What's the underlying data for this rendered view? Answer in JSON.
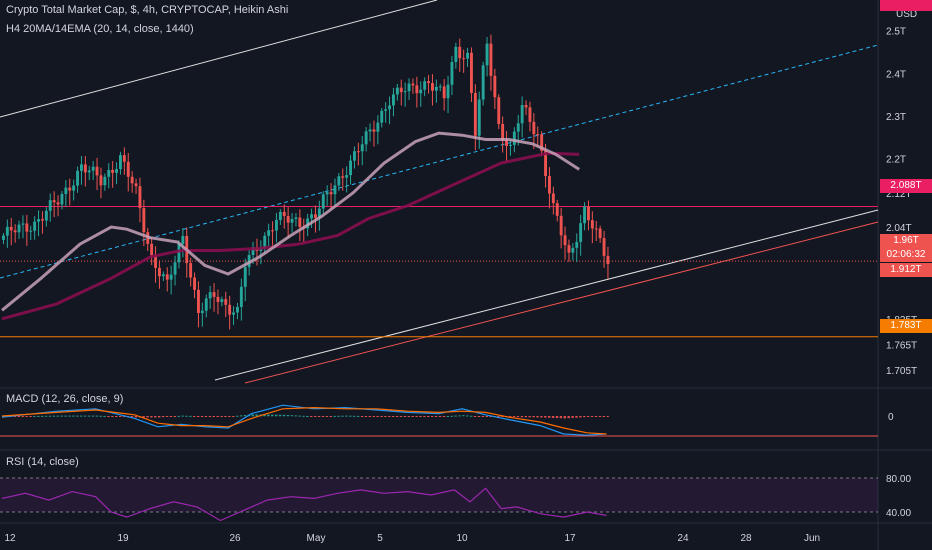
{
  "header": {
    "title": "Crypto Total Market Cap, $, 4h, CRYPTOCAP, Heikin Ashi",
    "indicator": "H4 20MA/14EMA (20, 14, close, 1440)",
    "currency": "USD"
  },
  "macd": {
    "label": "MACD (12, 26, close, 9)",
    "zero_label": "0"
  },
  "rsi": {
    "label": "RSI (14, close)",
    "levels": [
      "80.00",
      "40.00"
    ]
  },
  "price_labels": {
    "y_ticks": [
      "2.5T",
      "2.4T",
      "2.3T",
      "2.2T",
      "2.12T",
      "2.04T",
      "1.825T",
      "1.765T",
      "1.705T"
    ],
    "tag_2088": "2.088T",
    "tag_current": "1.96T",
    "tag_countdown": "02:06:32",
    "tag_1912": "1.912T",
    "tag_1783": "1.783T"
  },
  "colors": {
    "up": "#26a69a",
    "down": "#ef5350",
    "background": "#131722",
    "ma20": "#c8a2b7",
    "ema14": "#880e4f",
    "resistance": "#e91e63",
    "support": "#f57c00",
    "trend": "#e0e0e0",
    "dashed": "#2196f3",
    "macd": "#2196f3",
    "signal": "#ff6d00",
    "rsi": "#9c27b0"
  },
  "chart_data": {
    "type": "candlestick",
    "style": "Heikin Ashi",
    "timeframe": "4h",
    "x_ticks": [
      "12",
      "19",
      "26",
      "May",
      "5",
      "10",
      "17",
      "24",
      "28",
      "Jun"
    ],
    "horizontal_levels": [
      2.088,
      1.912,
      1.783
    ],
    "current_price": 1.96,
    "ylim": [
      1.67,
      2.56
    ],
    "price_shape": [
      [
        0,
        2.02
      ],
      [
        8,
        2.05
      ],
      [
        14,
        2.1
      ],
      [
        20,
        2.18
      ],
      [
        25,
        2.15
      ],
      [
        30,
        2.2
      ],
      [
        34,
        2.12
      ],
      [
        38,
        1.97
      ],
      [
        42,
        1.9
      ],
      [
        46,
        2.02
      ],
      [
        50,
        1.84
      ],
      [
        54,
        1.88
      ],
      [
        60,
        1.84
      ],
      [
        62,
        1.95
      ],
      [
        70,
        2.06
      ],
      [
        76,
        2.05
      ],
      [
        80,
        2.07
      ],
      [
        88,
        2.18
      ],
      [
        94,
        2.26
      ],
      [
        99,
        2.34
      ],
      [
        103,
        2.36
      ],
      [
        109,
        2.38
      ],
      [
        113,
        2.34
      ],
      [
        116,
        2.46
      ],
      [
        119,
        2.44
      ],
      [
        121,
        2.26
      ],
      [
        124,
        2.47
      ],
      [
        127,
        2.28
      ],
      [
        130,
        2.22
      ],
      [
        133,
        2.32
      ],
      [
        137,
        2.26
      ],
      [
        141,
        2.08
      ],
      [
        145,
        1.97
      ],
      [
        149,
        2.08
      ],
      [
        151,
        2.04
      ],
      [
        155,
        1.96
      ]
    ],
    "ma20_shape": [
      [
        0,
        1.845
      ],
      [
        10,
        1.92
      ],
      [
        20,
        2.0
      ],
      [
        28,
        2.04
      ],
      [
        32,
        2.035
      ],
      [
        38,
        2.015
      ],
      [
        45,
        2.005
      ],
      [
        52,
        1.95
      ],
      [
        58,
        1.93
      ],
      [
        66,
        1.97
      ],
      [
        74,
        2.02
      ],
      [
        82,
        2.065
      ],
      [
        90,
        2.12
      ],
      [
        98,
        2.19
      ],
      [
        106,
        2.24
      ],
      [
        112,
        2.26
      ],
      [
        118,
        2.255
      ],
      [
        124,
        2.245
      ],
      [
        130,
        2.245
      ],
      [
        136,
        2.235
      ],
      [
        142,
        2.21
      ],
      [
        148,
        2.175
      ]
    ],
    "ema14_shape": [
      [
        0,
        1.825
      ],
      [
        14,
        1.86
      ],
      [
        28,
        1.92
      ],
      [
        38,
        1.97
      ],
      [
        46,
        1.985
      ],
      [
        56,
        1.985
      ],
      [
        66,
        1.99
      ],
      [
        76,
        2.0
      ],
      [
        86,
        2.02
      ],
      [
        94,
        2.06
      ],
      [
        104,
        2.09
      ],
      [
        116,
        2.14
      ],
      [
        128,
        2.19
      ],
      [
        140,
        2.213
      ],
      [
        148,
        2.21
      ]
    ],
    "macd_shape": [
      [
        0,
        -0.1
      ],
      [
        14,
        0.4
      ],
      [
        24,
        0.6
      ],
      [
        34,
        -0.2
      ],
      [
        40,
        -0.9
      ],
      [
        46,
        -0.7
      ],
      [
        52,
        -0.9
      ],
      [
        58,
        -1.0
      ],
      [
        64,
        0.2
      ],
      [
        72,
        0.9
      ],
      [
        80,
        0.6
      ],
      [
        88,
        0.7
      ],
      [
        96,
        0.5
      ],
      [
        104,
        0.3
      ],
      [
        112,
        0.2
      ],
      [
        118,
        0.6
      ],
      [
        124,
        0.1
      ],
      [
        130,
        -0.3
      ],
      [
        138,
        -0.8
      ],
      [
        144,
        -1.5
      ],
      [
        150,
        -1.6
      ],
      [
        155,
        -1.5
      ]
    ],
    "signal_shape": [
      [
        0,
        0.0
      ],
      [
        14,
        0.3
      ],
      [
        24,
        0.5
      ],
      [
        34,
        0.1
      ],
      [
        40,
        -0.6
      ],
      [
        46,
        -0.8
      ],
      [
        52,
        -0.8
      ],
      [
        58,
        -0.9
      ],
      [
        64,
        -0.2
      ],
      [
        72,
        0.6
      ],
      [
        80,
        0.7
      ],
      [
        88,
        0.6
      ],
      [
        96,
        0.6
      ],
      [
        104,
        0.4
      ],
      [
        112,
        0.3
      ],
      [
        118,
        0.4
      ],
      [
        124,
        0.3
      ],
      [
        130,
        -0.1
      ],
      [
        138,
        -0.5
      ],
      [
        144,
        -1.0
      ],
      [
        150,
        -1.4
      ],
      [
        155,
        -1.5
      ]
    ],
    "rsi_shape": [
      [
        0,
        56
      ],
      [
        6,
        62
      ],
      [
        12,
        54
      ],
      [
        18,
        64
      ],
      [
        24,
        58
      ],
      [
        28,
        40
      ],
      [
        32,
        34
      ],
      [
        38,
        44
      ],
      [
        44,
        52
      ],
      [
        50,
        46
      ],
      [
        56,
        30
      ],
      [
        62,
        42
      ],
      [
        68,
        54
      ],
      [
        74,
        58
      ],
      [
        80,
        56
      ],
      [
        86,
        62
      ],
      [
        92,
        66
      ],
      [
        98,
        62
      ],
      [
        104,
        64
      ],
      [
        110,
        60
      ],
      [
        116,
        66
      ],
      [
        120,
        52
      ],
      [
        124,
        68
      ],
      [
        128,
        44
      ],
      [
        132,
        46
      ],
      [
        138,
        38
      ],
      [
        144,
        34
      ],
      [
        150,
        40
      ],
      [
        155,
        36
      ]
    ]
  }
}
